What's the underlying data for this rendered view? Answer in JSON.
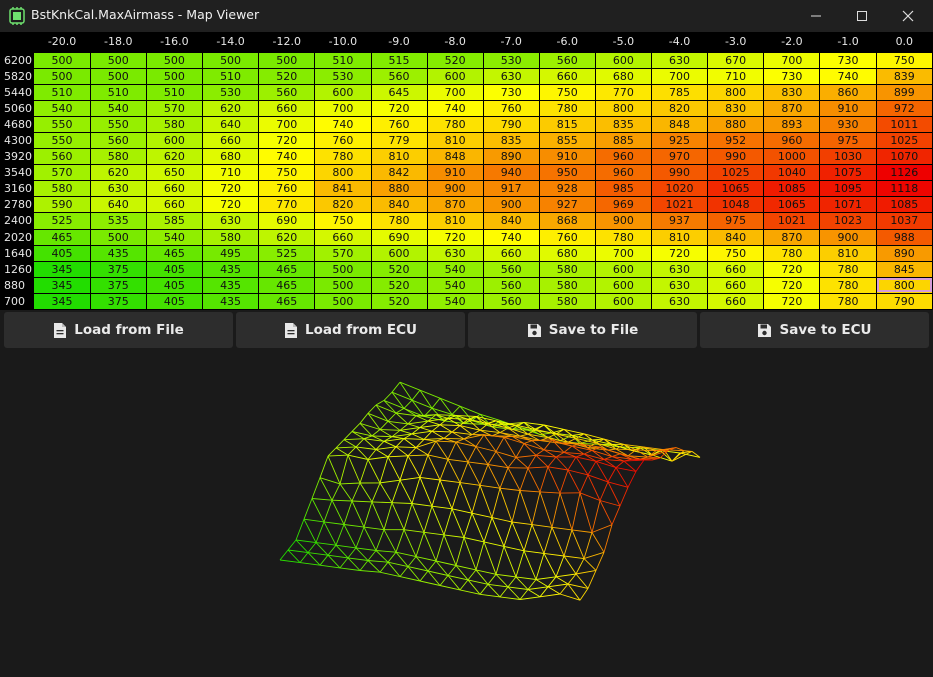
{
  "window": {
    "title": "BstKnkCal.MaxAirmass - Map Viewer",
    "icon": "app-chip-icon",
    "controls": [
      "minimize-icon",
      "maximize-icon",
      "close-icon"
    ]
  },
  "map": {
    "columns": [
      "-20.0",
      "-18.0",
      "-16.0",
      "-14.0",
      "-12.0",
      "-10.0",
      "-9.0",
      "-8.0",
      "-7.0",
      "-6.0",
      "-5.0",
      "-4.0",
      "-3.0",
      "-2.0",
      "-1.0",
      "0.0"
    ],
    "rows": [
      {
        "label": "6200",
        "values": [
          "500",
          "500",
          "500",
          "500",
          "500",
          "510",
          "515",
          "520",
          "530",
          "560",
          "600",
          "630",
          "670",
          "700",
          "730",
          "750"
        ]
      },
      {
        "label": "5820",
        "values": [
          "500",
          "500",
          "500",
          "510",
          "520",
          "530",
          "560",
          "600",
          "630",
          "660",
          "680",
          "700",
          "710",
          "730",
          "740",
          "839"
        ]
      },
      {
        "label": "5440",
        "values": [
          "510",
          "510",
          "510",
          "530",
          "560",
          "600",
          "645",
          "700",
          "730",
          "750",
          "770",
          "785",
          "800",
          "830",
          "860",
          "899"
        ]
      },
      {
        "label": "5060",
        "values": [
          "540",
          "540",
          "570",
          "620",
          "660",
          "700",
          "720",
          "740",
          "760",
          "780",
          "800",
          "820",
          "830",
          "870",
          "910",
          "972"
        ]
      },
      {
        "label": "4680",
        "values": [
          "550",
          "550",
          "580",
          "640",
          "700",
          "740",
          "760",
          "780",
          "790",
          "815",
          "835",
          "848",
          "880",
          "893",
          "930",
          "1011"
        ]
      },
      {
        "label": "4300",
        "values": [
          "550",
          "560",
          "600",
          "660",
          "720",
          "760",
          "779",
          "810",
          "835",
          "855",
          "885",
          "925",
          "952",
          "960",
          "975",
          "1025"
        ]
      },
      {
        "label": "3920",
        "values": [
          "560",
          "580",
          "620",
          "680",
          "740",
          "780",
          "810",
          "848",
          "890",
          "910",
          "960",
          "970",
          "990",
          "1000",
          "1030",
          "1070"
        ]
      },
      {
        "label": "3540",
        "values": [
          "570",
          "620",
          "650",
          "710",
          "750",
          "800",
          "842",
          "910",
          "940",
          "950",
          "960",
          "990",
          "1025",
          "1040",
          "1075",
          "1126"
        ]
      },
      {
        "label": "3160",
        "values": [
          "580",
          "630",
          "660",
          "720",
          "760",
          "841",
          "880",
          "900",
          "917",
          "928",
          "985",
          "1020",
          "1065",
          "1085",
          "1095",
          "1118"
        ]
      },
      {
        "label": "2780",
        "values": [
          "590",
          "640",
          "660",
          "720",
          "770",
          "820",
          "840",
          "870",
          "900",
          "927",
          "969",
          "1021",
          "1048",
          "1065",
          "1071",
          "1085"
        ]
      },
      {
        "label": "2400",
        "values": [
          "525",
          "535",
          "585",
          "630",
          "690",
          "750",
          "780",
          "810",
          "840",
          "868",
          "900",
          "937",
          "975",
          "1021",
          "1023",
          "1037"
        ]
      },
      {
        "label": "2020",
        "values": [
          "465",
          "500",
          "540",
          "580",
          "620",
          "660",
          "690",
          "720",
          "740",
          "760",
          "780",
          "810",
          "840",
          "870",
          "900",
          "988"
        ]
      },
      {
        "label": "1640",
        "values": [
          "405",
          "435",
          "465",
          "495",
          "525",
          "570",
          "600",
          "630",
          "660",
          "680",
          "700",
          "720",
          "750",
          "780",
          "810",
          "890"
        ]
      },
      {
        "label": "1260",
        "values": [
          "345",
          "375",
          "405",
          "435",
          "465",
          "500",
          "520",
          "540",
          "560",
          "580",
          "600",
          "630",
          "660",
          "720",
          "780",
          "845"
        ]
      },
      {
        "label": "880",
        "values": [
          "345",
          "375",
          "405",
          "435",
          "465",
          "500",
          "520",
          "540",
          "560",
          "580",
          "600",
          "630",
          "660",
          "720",
          "780",
          "800"
        ]
      },
      {
        "label": "700",
        "values": [
          "345",
          "375",
          "405",
          "435",
          "465",
          "500",
          "520",
          "540",
          "560",
          "580",
          "600",
          "630",
          "660",
          "720",
          "780",
          "790"
        ]
      }
    ],
    "selected_cell": {
      "row": 14,
      "col": 15
    },
    "color_scale": {
      "low": "#22dd00",
      "mid": "#ffff00",
      "high": "#ee0000",
      "min": 345,
      "max": 1126
    }
  },
  "buttons": [
    {
      "label": "Load from File",
      "icon": "file-icon"
    },
    {
      "label": "Load from ECU",
      "icon": "file-icon"
    },
    {
      "label": "Save to File",
      "icon": "floppy-disk-icon"
    },
    {
      "label": "Save to ECU",
      "icon": "floppy-disk-icon"
    }
  ],
  "surface": {
    "type": "3d-wireframe",
    "background": "#1a1a1a"
  }
}
